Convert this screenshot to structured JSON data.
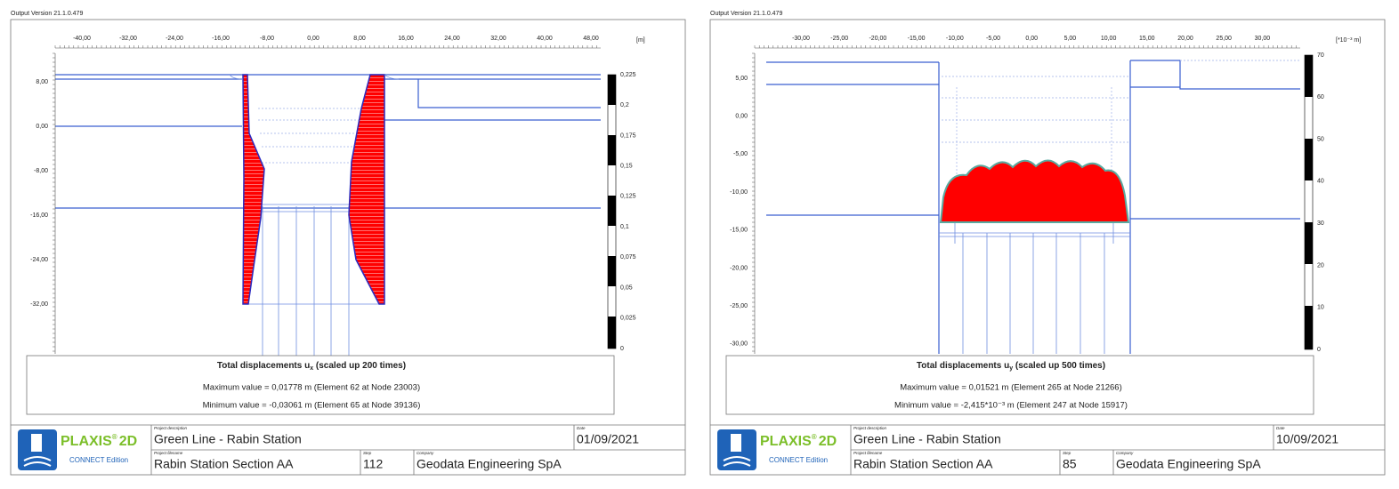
{
  "panels": [
    {
      "version": "Output Version 21.1.0.479",
      "x_ruler": [
        "-40,00",
        "-32,00",
        "-24,00",
        "-16,00",
        "-8,00",
        "0,00",
        "8,00",
        "16,00",
        "24,00",
        "32,00",
        "40,00",
        "48,00"
      ],
      "unit": "[m]",
      "y_labels": [
        "8,00",
        "0,00",
        "-8,00",
        "-16,00",
        "-24,00",
        "-32,00"
      ],
      "legend": [
        "0,225",
        "0,2",
        "0,175",
        "0,15",
        "0,125",
        "0,1",
        "0,075",
        "0,05",
        "0,025",
        "0"
      ],
      "result": {
        "title": "Total displacements u",
        "subscript": "x",
        "scale": " (scaled up 200 times)",
        "max": "Maximum value = 0,01778 m (Element 62 at Node 23003)",
        "min": "Minimum value = -0,03061 m (Element 65 at Node 39136)"
      },
      "logo": {
        "brand": "PLAXIS",
        "reg": "®",
        "product": "2D",
        "edition": "CONNECT Edition"
      },
      "footer": {
        "project_description_label": "Project description",
        "project_description": "Green Line - Rabin Station",
        "date_label": "Date",
        "date": "01/09/2021",
        "project_filename_label": "Project filename",
        "project_filename": "Rabin Station Section AA",
        "step_label": "Step",
        "step": "112",
        "company_label": "Company",
        "company": "Geodata Engineering SpA"
      }
    },
    {
      "version": "Output Version 21.1.0.479",
      "x_ruler": [
        "-30,00",
        "-25,00",
        "-20,00",
        "-15,00",
        "-10,00",
        "-5,00",
        "0,00",
        "5,00",
        "10,00",
        "15,00",
        "20,00",
        "25,00",
        "30,00"
      ],
      "unit": "[*10⁻³ m]",
      "y_labels": [
        "5,00",
        "0,00",
        "-5,00",
        "-10,00",
        "-15,00",
        "-20,00",
        "-25,00",
        "-30,00"
      ],
      "legend": [
        "70",
        "60",
        "50",
        "40",
        "30",
        "20",
        "10",
        "0"
      ],
      "result": {
        "title": "Total displacements u",
        "subscript": "y",
        "scale": " (scaled up 500 times)",
        "max": "Maximum value = 0,01521 m (Element 265 at Node 21266)",
        "min": "Minimum value = -2,415*10⁻³ m (Element 247 at Node 15917)"
      },
      "logo": {
        "brand": "PLAXIS",
        "reg": "®",
        "product": "2D",
        "edition": "CONNECT Edition"
      },
      "footer": {
        "project_description_label": "Project description",
        "project_description": "Green Line - Rabin Station",
        "date_label": "Date",
        "date": "10/09/2021",
        "project_filename_label": "Project filename",
        "project_filename": "Rabin Station Section AA",
        "step_label": "Step",
        "step": "85",
        "company_label": "Company",
        "company": "Geodata Engineering SpA"
      }
    }
  ]
}
